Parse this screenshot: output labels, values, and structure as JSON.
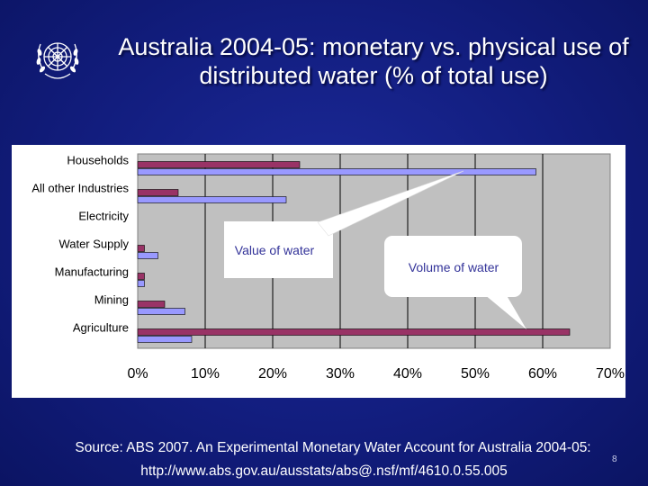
{
  "title": "Australia 2004-05: monetary vs. physical use of distributed water (% of total use)",
  "logo": "un-emblem-icon",
  "colors": {
    "background": "#131e80",
    "plot_area": "#c0c0c0",
    "value_series": "#993366",
    "volume_series": "#9999ff"
  },
  "chart_data": {
    "type": "bar",
    "orientation": "horizontal",
    "categories": [
      "Households",
      "All other Industries",
      "Electricity",
      "Water Supply",
      "Manufacturing",
      "Mining",
      "Agriculture"
    ],
    "series": [
      {
        "name": "Value of water",
        "values": [
          24,
          6,
          0,
          1,
          1,
          4,
          64
        ]
      },
      {
        "name": "Volume of water",
        "values": [
          59,
          22,
          0,
          3,
          1,
          7,
          8
        ]
      }
    ],
    "xlim": [
      0,
      70
    ],
    "xticks": [
      0,
      10,
      20,
      30,
      40,
      50,
      60,
      70
    ],
    "tick_suffix": "%",
    "grid": "vertical",
    "legend": "none",
    "annotations": [
      {
        "text": "Value of water",
        "series": "Value of water"
      },
      {
        "text": "Volume of water",
        "series": "Volume of water"
      }
    ]
  },
  "source": {
    "line1": "Source: ABS 2007. An Experimental Monetary Water Account for Australia 2004-05:",
    "line2": "http://www.abs.gov.au/ausstats/abs@.nsf/mf/4610.0.55.005"
  },
  "page_number": "8"
}
